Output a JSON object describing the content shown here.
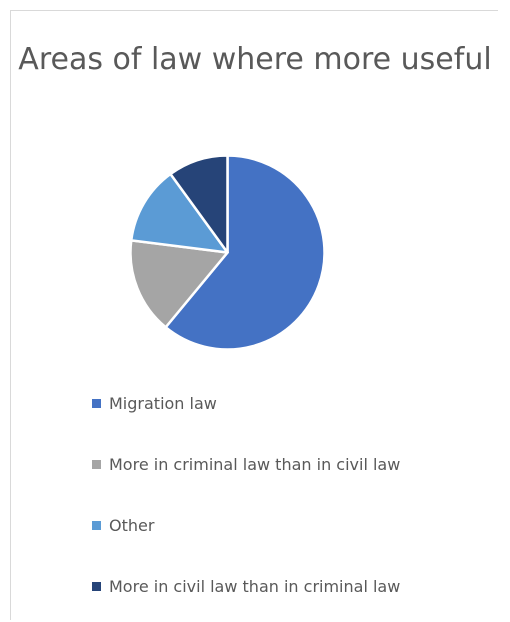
{
  "chart_data": {
    "type": "pie",
    "title": "Areas of law where more useful",
    "categories": [
      "Migration law",
      "More in criminal law than in civil law",
      "Other",
      "More in civil law than in criminal law"
    ],
    "values": [
      61,
      16,
      13,
      10
    ],
    "colors": [
      "#4472c4",
      "#a5a5a5",
      "#5b9bd5",
      "#264478"
    ],
    "legend_position": "bottom"
  }
}
